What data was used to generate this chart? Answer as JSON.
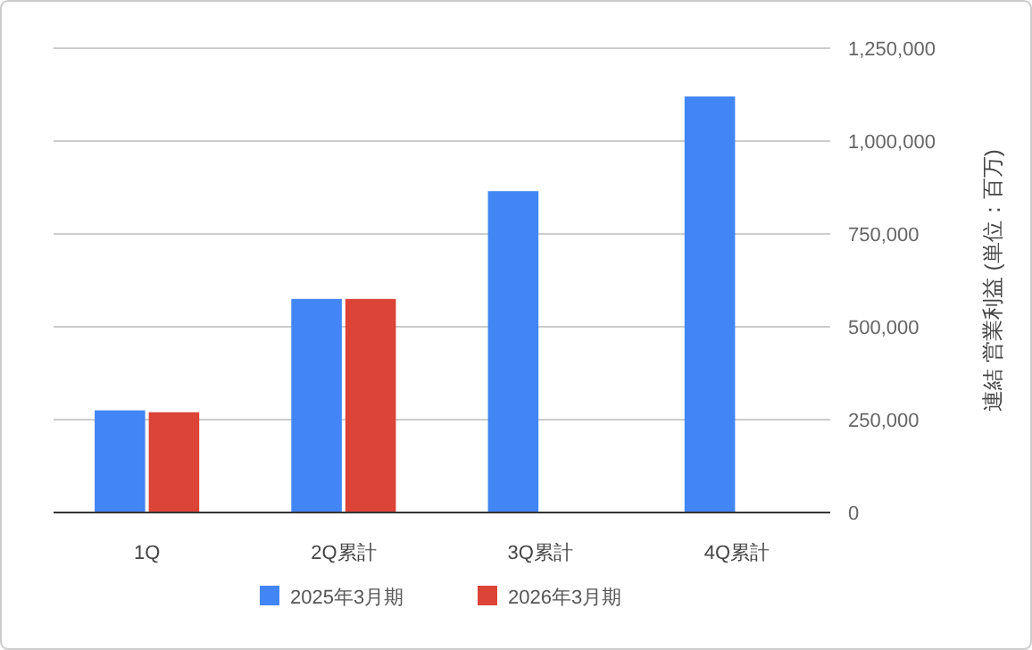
{
  "chart_data": {
    "type": "bar",
    "ylabel": "連結 営業利益 (単位：百万)",
    "categories": [
      "1Q",
      "2Q累計",
      "3Q累計",
      "4Q累計"
    ],
    "series": [
      {
        "name": "2025年3月期",
        "color": "#4285f4",
        "values": [
          275000,
          575000,
          865000,
          1120000
        ]
      },
      {
        "name": "2026年3月期",
        "color": "#db4437",
        "values": [
          270000,
          575000,
          null,
          null
        ]
      }
    ],
    "ylim": [
      0,
      1250000
    ],
    "yticks": [
      {
        "value": 0,
        "label": "0"
      },
      {
        "value": 250000,
        "label": "250,000"
      },
      {
        "value": 500000,
        "label": "500,000"
      },
      {
        "value": 750000,
        "label": "750,000"
      },
      {
        "value": 1000000,
        "label": "1,000,000"
      },
      {
        "value": 1250000,
        "label": "1,250,000"
      }
    ],
    "grid": true,
    "legend": "bottom"
  }
}
